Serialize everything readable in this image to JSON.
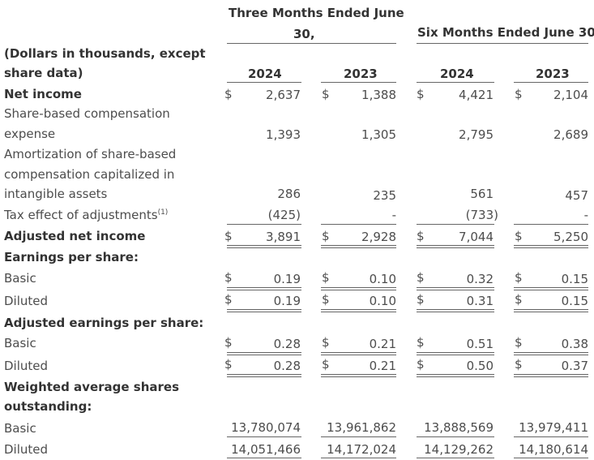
{
  "headers": {
    "three_months_l1": "Three Months Ended June",
    "three_months_l2": "30,",
    "six_months": "Six Months Ended June 30,",
    "dollars_l1": "(Dollars in thousands, except",
    "dollars_l2": "share data)",
    "years": [
      "2024",
      "2023",
      "2024",
      "2023"
    ]
  },
  "currency": "$",
  "rows": {
    "net_income": {
      "label": "Net income",
      "values": [
        "2,637",
        "1,388",
        "4,421",
        "2,104"
      ]
    },
    "sbc": {
      "label_l1": "Share-based compensation",
      "label_l2": "expense",
      "values": [
        "1,393",
        "1,305",
        "2,795",
        "2,689"
      ]
    },
    "amort": {
      "label_l1": "Amortization of share-based",
      "label_l2": "compensation capitalized in",
      "label_l3": "intangible assets",
      "values": [
        "286",
        "235",
        "561",
        "457"
      ]
    },
    "tax": {
      "label": "Tax effect of adjustments",
      "footnote": "(1)",
      "values": [
        "(425)",
        "-",
        "(733)",
        "-"
      ]
    },
    "adj_net_income": {
      "label": "Adjusted net income",
      "values": [
        "3,891",
        "2,928",
        "7,044",
        "5,250"
      ]
    },
    "eps_header": {
      "label": "Earnings per share:"
    },
    "eps_basic": {
      "label": "Basic",
      "values": [
        "0.19",
        "0.10",
        "0.32",
        "0.15"
      ]
    },
    "eps_diluted": {
      "label": "Diluted",
      "values": [
        "0.19",
        "0.10",
        "0.31",
        "0.15"
      ]
    },
    "adj_eps_header": {
      "label": "Adjusted earnings per share:"
    },
    "adj_eps_basic": {
      "label": "Basic",
      "values": [
        "0.28",
        "0.21",
        "0.51",
        "0.38"
      ]
    },
    "adj_eps_diluted": {
      "label": "Diluted",
      "values": [
        "0.28",
        "0.21",
        "0.50",
        "0.37"
      ]
    },
    "was_header": {
      "label_l1": "Weighted average shares",
      "label_l2": "outstanding:"
    },
    "was_basic": {
      "label": "Basic",
      "values": [
        "13,780,074",
        "13,961,862",
        "13,888,569",
        "13,979,411"
      ]
    },
    "was_diluted": {
      "label": "Diluted",
      "values": [
        "14,051,466",
        "14,172,024",
        "14,129,262",
        "14,180,614"
      ]
    }
  }
}
